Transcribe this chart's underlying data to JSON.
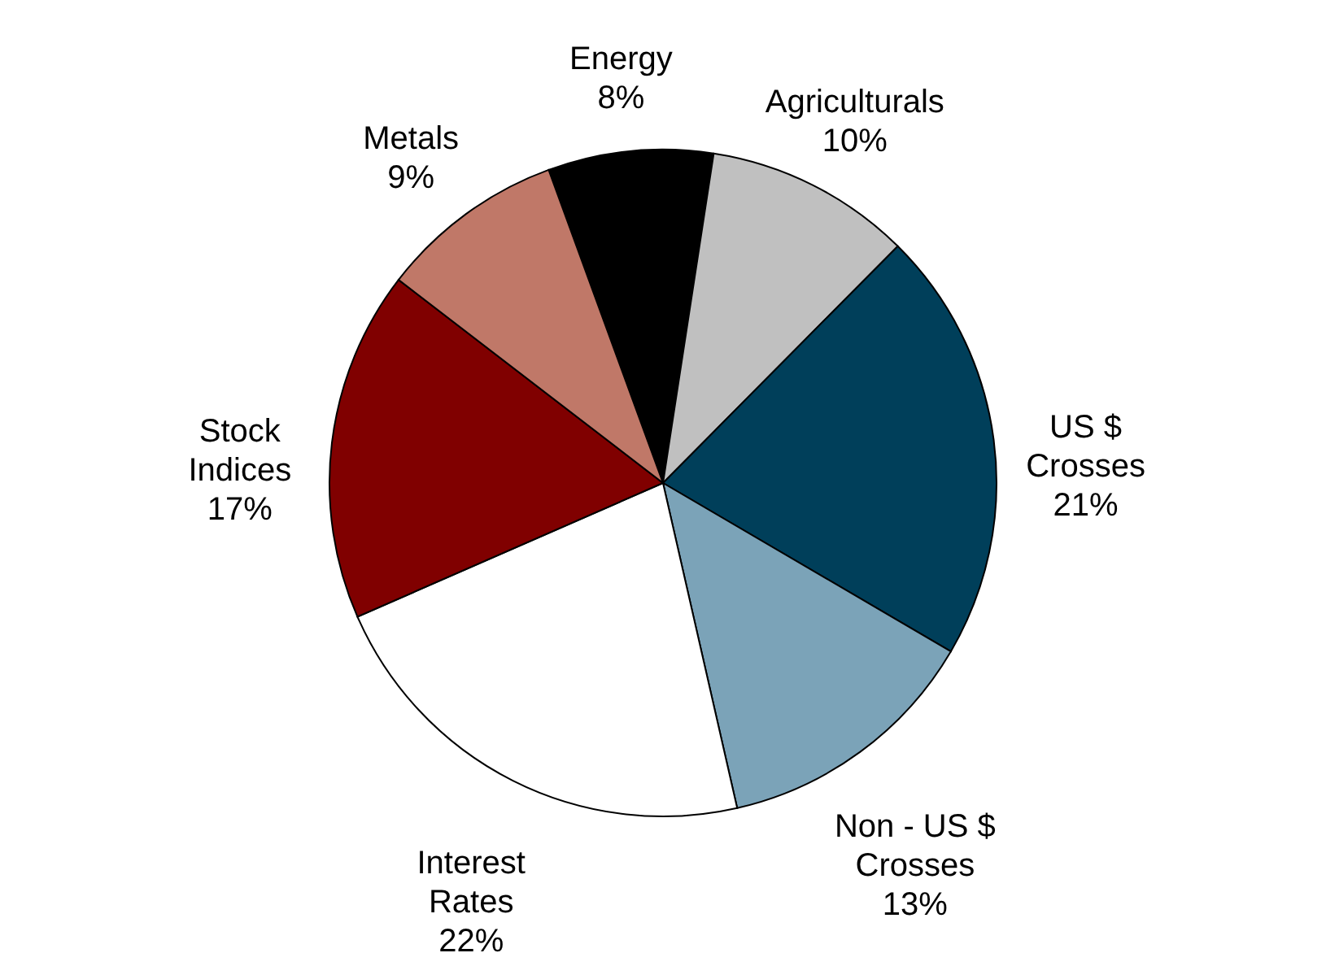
{
  "chart_data": {
    "type": "pie",
    "categories": [
      "Energy",
      "Agriculturals",
      "US $ Crosses",
      "Non - US $ Crosses",
      "Interest Rates",
      "Stock Indices",
      "Metals"
    ],
    "values": [
      8,
      10,
      21,
      13,
      22,
      17,
      9
    ],
    "value_labels": [
      "8%",
      "10%",
      "21%",
      "13%",
      "22%",
      "17%",
      "9%"
    ],
    "colors": [
      "#000000",
      "#c0c0c0",
      "#003f5a",
      "#7ba3b8",
      "#ffffff",
      "#800000",
      "#c07868"
    ],
    "legend": false
  }
}
